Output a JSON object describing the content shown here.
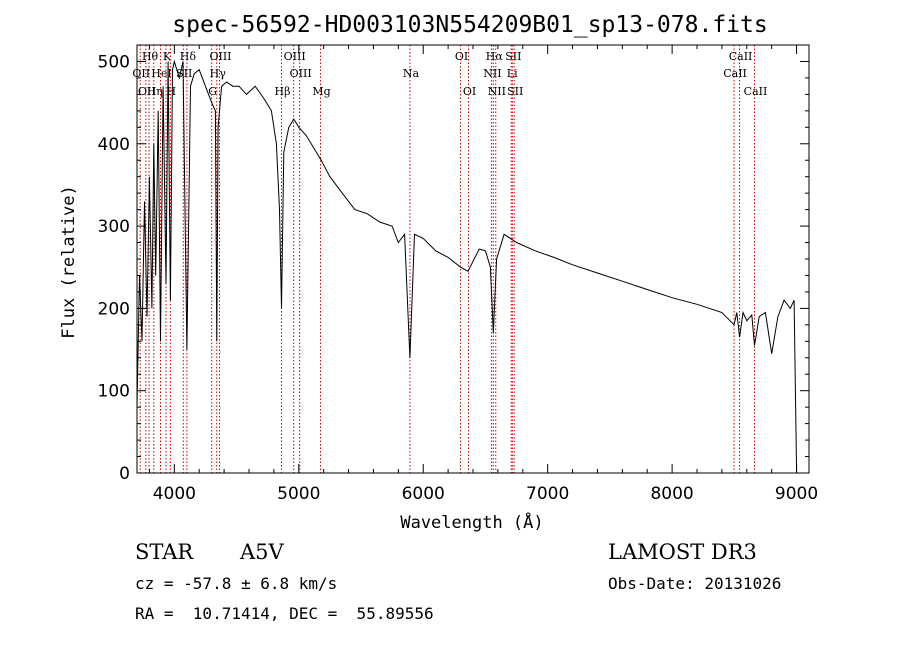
{
  "chart_data": {
    "type": "line",
    "title": "spec-56592-HD003103N554209B01_sp13-078.fits",
    "xlabel": "Wavelength (Å)",
    "ylabel": "Flux (relative)",
    "xlim": [
      3700,
      9100
    ],
    "ylim": [
      0,
      520
    ],
    "xticks": [
      4000,
      5000,
      6000,
      7000,
      8000,
      9000
    ],
    "yticks": [
      0,
      100,
      200,
      300,
      400,
      500
    ],
    "grid": false,
    "legend": "none",
    "line_color": "#000000",
    "marker_color": "#cc0000",
    "series": [
      {
        "name": "flux",
        "x": [
          3700,
          3720,
          3740,
          3760,
          3780,
          3800,
          3820,
          3835,
          3850,
          3870,
          3889,
          3910,
          3933,
          3950,
          3968,
          3985,
          4000,
          4020,
          4040,
          4070,
          4101,
          4130,
          4160,
          4200,
          4250,
          4300,
          4330,
          4341,
          4352,
          4380,
          4420,
          4470,
          4520,
          4580,
          4650,
          4720,
          4780,
          4820,
          4845,
          4861,
          4880,
          4920,
          4960,
          5000,
          5060,
          5120,
          5180,
          5250,
          5350,
          5450,
          5550,
          5650,
          5750,
          5800,
          5850,
          5893,
          5930,
          6000,
          6100,
          6200,
          6300,
          6360,
          6450,
          6500,
          6540,
          6563,
          6590,
          6650,
          6750,
          6900,
          7050,
          7200,
          7400,
          7600,
          7800,
          8000,
          8200,
          8400,
          8498,
          8520,
          8542,
          8570,
          8600,
          8640,
          8662,
          8700,
          8750,
          8800,
          8850,
          8900,
          8950,
          8980,
          9000
        ],
        "y": [
          80,
          240,
          160,
          330,
          190,
          360,
          200,
          400,
          240,
          440,
          160,
          470,
          230,
          500,
          210,
          490,
          500,
          490,
          480,
          500,
          150,
          470,
          485,
          490,
          470,
          450,
          440,
          160,
          420,
          470,
          475,
          470,
          470,
          460,
          470,
          455,
          440,
          400,
          320,
          200,
          390,
          420,
          430,
          420,
          410,
          395,
          380,
          360,
          340,
          320,
          315,
          305,
          300,
          280,
          290,
          140,
          290,
          285,
          270,
          262,
          250,
          245,
          272,
          270,
          250,
          170,
          260,
          290,
          280,
          270,
          262,
          253,
          243,
          233,
          223,
          213,
          205,
          195,
          180,
          195,
          165,
          195,
          185,
          192,
          155,
          190,
          195,
          145,
          190,
          210,
          200,
          210,
          0
        ]
      }
    ],
    "line_markers": [
      {
        "wavelength": 3726,
        "label": "OII",
        "row": 1
      },
      {
        "wavelength": 3771,
        "label": "OII",
        "row": 2
      },
      {
        "wavelength": 3797,
        "label": "Hθ",
        "row": 0
      },
      {
        "wavelength": 3835,
        "label": "Hη",
        "row": 2
      },
      {
        "wavelength": 3889,
        "label": "HeI",
        "row": 1
      },
      {
        "wavelength": 3933,
        "label": "K",
        "row": 0
      },
      {
        "wavelength": 3968,
        "label": "H",
        "row": 2
      },
      {
        "wavelength": 4072,
        "label": "SII",
        "row": 1
      },
      {
        "wavelength": 4101,
        "label": "Hδ",
        "row": 0
      },
      {
        "wavelength": 4300,
        "label": "G",
        "row": 2
      },
      {
        "wavelength": 4341,
        "label": "Hγ",
        "row": 1
      },
      {
        "wavelength": 4363,
        "label": "OIII",
        "row": 0
      },
      {
        "wavelength": 4861,
        "label": "Hβ",
        "row": 2
      },
      {
        "wavelength": 4959,
        "label": "OIII",
        "row": 0
      },
      {
        "wavelength": 5007,
        "label": "OIII",
        "row": 1
      },
      {
        "wavelength": 5175,
        "label": "Mg",
        "row": 2
      },
      {
        "wavelength": 5893,
        "label": "Na",
        "row": 1
      },
      {
        "wavelength": 6300,
        "label": "OI",
        "row": 0
      },
      {
        "wavelength": 6364,
        "label": "OI",
        "row": 2
      },
      {
        "wavelength": 6548,
        "label": "NII",
        "row": 1
      },
      {
        "wavelength": 6563,
        "label": "Hα",
        "row": 0
      },
      {
        "wavelength": 6583,
        "label": "NII",
        "row": 2
      },
      {
        "wavelength": 6707,
        "label": "Li",
        "row": 1
      },
      {
        "wavelength": 6716,
        "label": "SII",
        "row": 0
      },
      {
        "wavelength": 6731,
        "label": "SII",
        "row": 2
      },
      {
        "wavelength": 8498,
        "label": "CaII",
        "row": 1
      },
      {
        "wavelength": 8542,
        "label": "CaII",
        "row": 0
      },
      {
        "wavelength": 8662,
        "label": "CaII",
        "row": 2
      }
    ]
  },
  "info": {
    "object_type": "STAR",
    "spectral_class": "A5V",
    "survey": "LAMOST DR3",
    "cz": "cz = -57.8 ± 6.8 km/s",
    "obs_date": "Obs-Date: 20131026",
    "radec": "RA =  10.71414, DEC =  55.89556"
  }
}
